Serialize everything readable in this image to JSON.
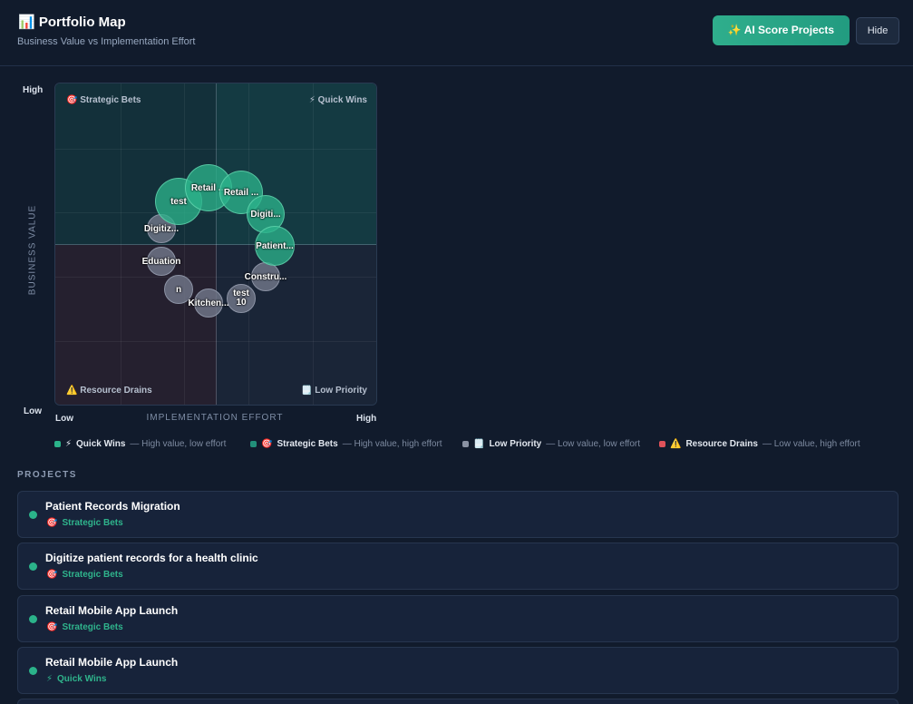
{
  "header": {
    "icon": "📊",
    "title": "Portfolio Map",
    "subtitle": "Business Value vs Implementation Effort",
    "buttons": [
      "✨ AI Score Projects",
      "Hide"
    ]
  },
  "map": {
    "y_axis": {
      "label": "BUSINESS VALUE",
      "high": "High",
      "low": "Low"
    },
    "x_axis": {
      "label": "IMPLEMENTATION EFFORT",
      "low": "Low",
      "high": "High"
    },
    "quadrants": [
      {
        "icon": "🎯",
        "name": "Strategic Bets"
      },
      {
        "icon": "⚡",
        "name": "Quick Wins"
      },
      {
        "icon": "⚠️",
        "name": "Resource Drains"
      },
      {
        "icon": "🗒️",
        "name": "Low Priority"
      }
    ],
    "bubbles": [
      "test",
      "Retail ...",
      "Retail ...",
      "Digiti...",
      "Patient...",
      "Digitiz...",
      "Eduation",
      "n",
      "Kitchen...",
      "test 10",
      "Constru..."
    ]
  },
  "legend": [
    {
      "icon": "⚡",
      "name": "Quick Wins",
      "description": "— High value, low effort"
    },
    {
      "icon": "🎯",
      "name": "Strategic Bets",
      "description": "— High value, high effort"
    },
    {
      "icon": "🗒️",
      "name": "Low Priority",
      "description": "— Low value, low effort"
    },
    {
      "icon": "⚠️",
      "name": "Resource Drains",
      "description": "— Low value, high effort"
    }
  ],
  "projects": {
    "heading": "PROJECTS",
    "items": [
      {
        "title": "Patient Records Migration",
        "icon": "🎯",
        "category": "Strategic Bets"
      },
      {
        "title": "Digitize patient records for a health clinic",
        "icon": "🎯",
        "category": "Strategic Bets"
      },
      {
        "title": "Retail Mobile App Launch",
        "icon": "🎯",
        "category": "Strategic Bets"
      },
      {
        "title": "Retail Mobile App Launch",
        "icon": "⚡",
        "category": "Quick Wins"
      }
    ]
  }
}
